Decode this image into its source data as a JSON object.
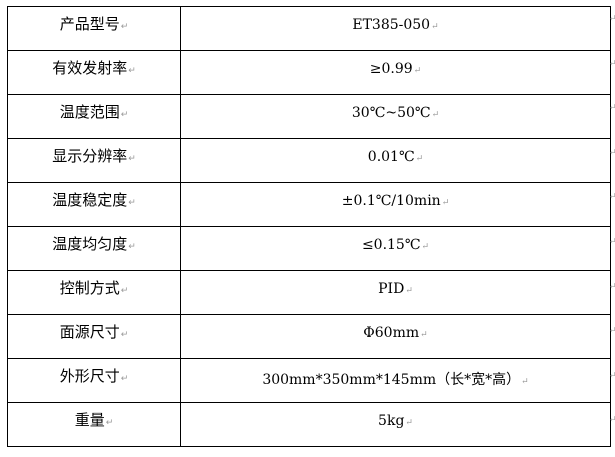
{
  "spec_table": {
    "rows": [
      {
        "label": "产品型号",
        "value": "ET385-050"
      },
      {
        "label": "有效发射率",
        "value": "≥0.99"
      },
      {
        "label": "温度范围",
        "value": "30℃~50℃"
      },
      {
        "label": "显示分辨率",
        "value": "0.01℃"
      },
      {
        "label": "温度稳定度",
        "value": "±0.1℃/10min"
      },
      {
        "label": "温度均匀度",
        "value": "≤0.15℃"
      },
      {
        "label": "控制方式",
        "value": "PID"
      },
      {
        "label": "面源尺寸",
        "value": "Φ60mm"
      },
      {
        "label": "外形尺寸",
        "value": "300mm*350mm*145mm（长*宽*高）"
      },
      {
        "label": "重量",
        "value": "5kg"
      }
    ]
  }
}
